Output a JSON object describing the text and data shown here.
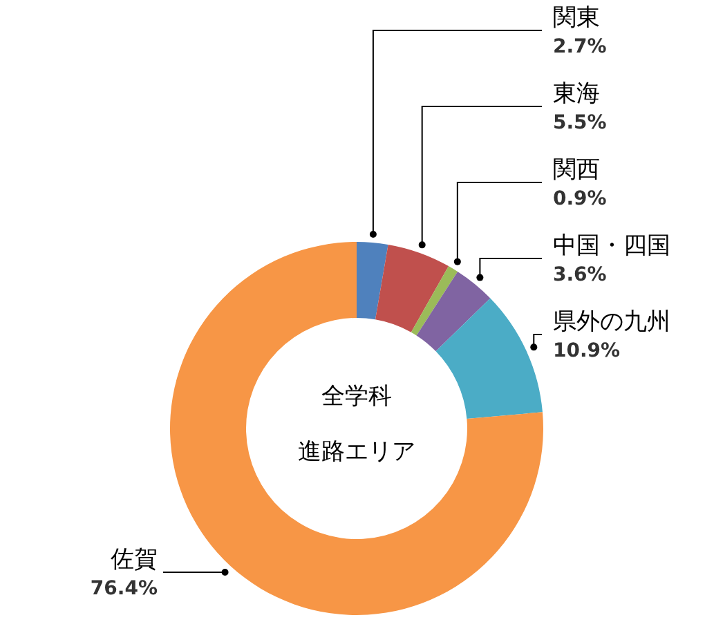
{
  "chart_data": {
    "type": "donut",
    "title": "全学科",
    "subtitle": "進路エリア",
    "categories": [
      "関東",
      "東海",
      "関西",
      "中国・四国",
      "県外の九州",
      "佐賀"
    ],
    "values": [
      2.7,
      5.5,
      0.9,
      3.6,
      10.9,
      76.4
    ],
    "value_labels": [
      "2.7%",
      "5.5%",
      "0.9%",
      "3.6%",
      "10.9%",
      "76.4%"
    ],
    "colors": [
      "#4f81bd",
      "#c0504d",
      "#9bbb59",
      "#8064a2",
      "#4bacc6",
      "#f79646"
    ]
  }
}
